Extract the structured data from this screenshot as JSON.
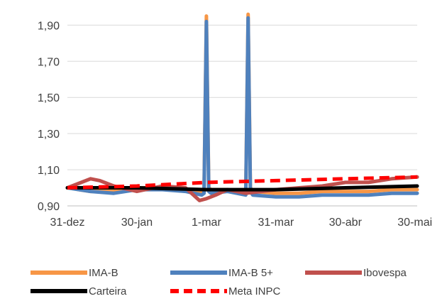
{
  "chart_data": {
    "type": "line",
    "title": "",
    "xlabel": "",
    "ylabel": "",
    "ylim": [
      0.9,
      1.98
    ],
    "y_ticks": [
      "0,90",
      "1,10",
      "1,30",
      "1,50",
      "1,70",
      "1,90"
    ],
    "x_ticks": [
      "31-dez",
      "30-jan",
      "1-mar",
      "31-mar",
      "30-abr",
      "30-mai"
    ],
    "grid": "horizontal",
    "legend_position": "bottom",
    "series": [
      {
        "name": "IMA-B",
        "color": "#F79646",
        "x": [
          "31-dez",
          "10-jan",
          "20-jan",
          "30-jan",
          "10-fev",
          "20-fev",
          "27-fev",
          "28-fev",
          "1-mar",
          "2-mar",
          "3-mar",
          "10-mar",
          "18-mar",
          "19-mar",
          "20-mar",
          "21-mar",
          "31-mar",
          "10-abr",
          "20-abr",
          "30-abr",
          "10-mai",
          "20-mai",
          "31-mai"
        ],
        "values": [
          1.0,
          0.98,
          0.98,
          1.0,
          1.0,
          0.99,
          0.98,
          0.99,
          1.95,
          1.0,
          0.99,
          0.99,
          0.98,
          1.96,
          1.0,
          0.98,
          0.97,
          0.97,
          0.98,
          0.98,
          0.98,
          0.99,
          0.99
        ]
      },
      {
        "name": "IMA-B 5+",
        "color": "#4F81BD",
        "x": [
          "31-dez",
          "10-jan",
          "20-jan",
          "30-jan",
          "10-fev",
          "20-fev",
          "27-fev",
          "28-fev",
          "1-mar",
          "2-mar",
          "3-mar",
          "10-mar",
          "18-mar",
          "19-mar",
          "20-mar",
          "21-mar",
          "31-mar",
          "10-abr",
          "20-abr",
          "30-abr",
          "10-mai",
          "20-mai",
          "31-mai"
        ],
        "values": [
          1.0,
          0.98,
          0.97,
          0.99,
          0.99,
          0.98,
          0.96,
          0.97,
          1.92,
          0.98,
          0.97,
          0.98,
          0.96,
          1.94,
          0.98,
          0.96,
          0.95,
          0.95,
          0.96,
          0.96,
          0.96,
          0.97,
          0.97
        ]
      },
      {
        "name": "Ibovespa",
        "color": "#C0504D",
        "x": [
          "31-dez",
          "10-jan",
          "14-jan",
          "20-jan",
          "30-jan",
          "10-fev",
          "20-fev",
          "26-fev",
          "1-mar",
          "5-mar",
          "10-mar",
          "18-mar",
          "25-mar",
          "31-mar",
          "10-abr",
          "20-abr",
          "30-abr",
          "10-mai",
          "20-mai",
          "31-mai"
        ],
        "values": [
          1.0,
          1.05,
          1.04,
          1.01,
          0.98,
          1.01,
          1.0,
          0.93,
          0.94,
          0.96,
          0.99,
          0.97,
          0.98,
          0.99,
          1.0,
          1.01,
          1.03,
          1.03,
          1.05,
          1.06
        ]
      },
      {
        "name": "Carteira",
        "color": "#000000",
        "x": [
          "31-dez",
          "30-jan",
          "1-mar",
          "31-mar",
          "30-abr",
          "31-mai"
        ],
        "values": [
          1.0,
          1.0,
          0.99,
          0.99,
          1.0,
          1.01
        ]
      },
      {
        "name": "Meta INPC",
        "color": "#FF0000",
        "dashed": true,
        "x": [
          "31-dez",
          "30-jan",
          "1-mar",
          "31-mar",
          "30-abr",
          "31-mai"
        ],
        "values": [
          1.0,
          1.01,
          1.03,
          1.04,
          1.05,
          1.06
        ]
      }
    ]
  }
}
